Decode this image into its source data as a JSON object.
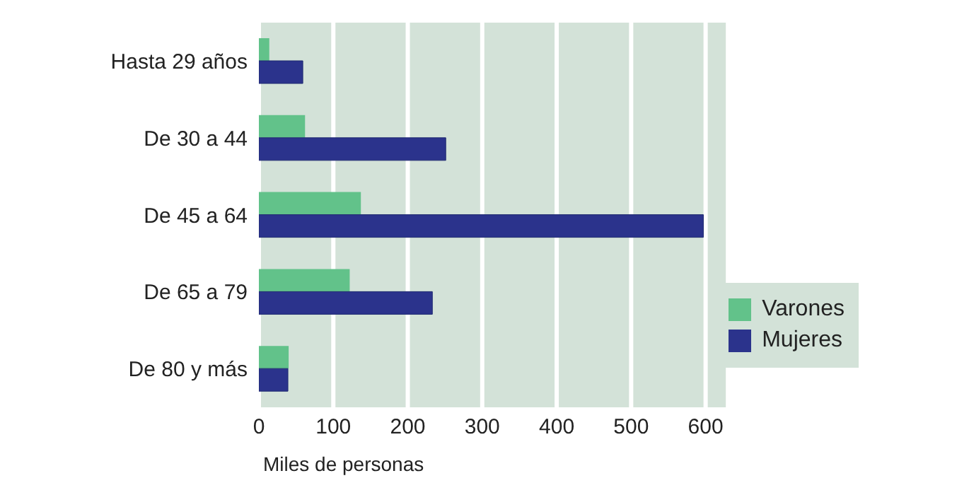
{
  "chart_data": {
    "type": "bar",
    "orientation": "horizontal",
    "xlabel": "Miles de personas",
    "categories": [
      "Hasta 29 años",
      "De 30 a 44",
      "De 45 a 64",
      "De 65 a 79",
      "De 80 y más"
    ],
    "series": [
      {
        "name": "Varones",
        "color": "#62c28a",
        "values": [
          14,
          62,
          137,
          122,
          40
        ]
      },
      {
        "name": "Mujeres",
        "color": "#2b338c",
        "values": [
          59,
          251,
          597,
          233,
          39
        ]
      }
    ],
    "xlim": [
      0,
      630
    ],
    "xticks": [
      0,
      100,
      200,
      300,
      400,
      500,
      600
    ],
    "grid": "x",
    "legend": "bottom right"
  }
}
